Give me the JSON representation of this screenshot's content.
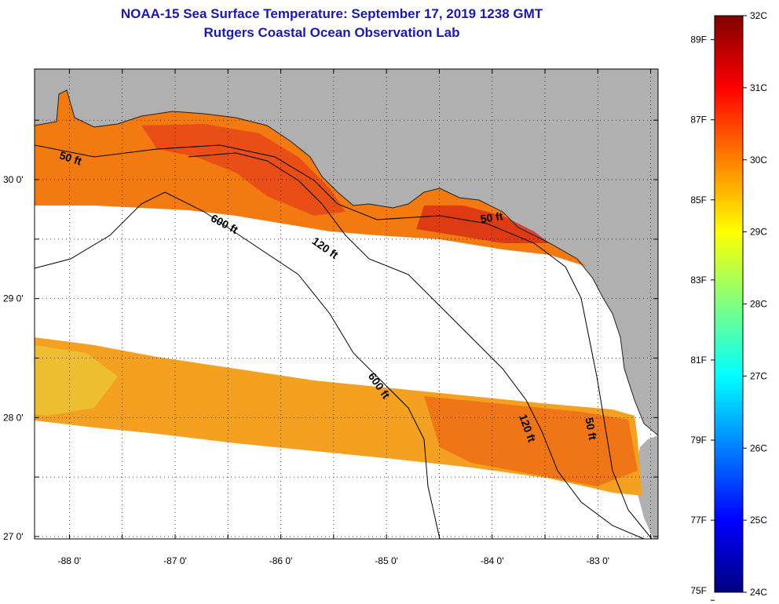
{
  "title": {
    "line1": "NOAA-15 Sea Surface Temperature:  September 17, 2019 1238 GMT",
    "line2": "Rutgers Coastal Ocean Observation Lab"
  },
  "map": {
    "land_color": "#b0b0b0",
    "no_data_color": "#ffffff",
    "lon_ticks": [
      {
        "value": -88,
        "label": "-88 0'"
      },
      {
        "value": -87,
        "label": "-87 0'"
      },
      {
        "value": -86,
        "label": "-86 0'"
      },
      {
        "value": -85,
        "label": "-85 0'"
      },
      {
        "value": -84,
        "label": "-84 0'"
      },
      {
        "value": -83,
        "label": "-83 0'"
      }
    ],
    "lat_ticks": [
      {
        "value": 30,
        "label": "30 0'"
      },
      {
        "value": 29,
        "label": "29 0'"
      },
      {
        "value": 28,
        "label": "28 0'"
      },
      {
        "value": 27,
        "label": "27 0'"
      }
    ],
    "lon_range": [
      -88.33,
      -82.43
    ],
    "lat_range": [
      26.98,
      30.93
    ],
    "contour_labels": [
      {
        "text": "50 ft",
        "lon": -88.0,
        "lat": 30.15,
        "rotate": 18
      },
      {
        "text": "600 ft",
        "lon": -86.55,
        "lat": 29.6,
        "rotate": 28
      },
      {
        "text": "120 ft",
        "lon": -85.6,
        "lat": 29.4,
        "rotate": 35
      },
      {
        "text": "50 ft",
        "lon": -84.0,
        "lat": 29.65,
        "rotate": -8
      },
      {
        "text": "600 ft",
        "lon": -85.1,
        "lat": 28.25,
        "rotate": 55
      },
      {
        "text": "120 ft",
        "lon": -83.7,
        "lat": 27.9,
        "rotate": 70
      },
      {
        "text": "50 ft",
        "lon": -83.1,
        "lat": 27.9,
        "rotate": 80
      }
    ]
  },
  "colorbar": {
    "f_labels": [
      "89F",
      "87F",
      "85F",
      "83F",
      "81F",
      "79F",
      "77F",
      "75F"
    ],
    "c_labels": [
      "32C",
      "31C",
      "30C",
      "29C",
      "28C",
      "27C",
      "26C",
      "25C",
      "24C"
    ],
    "colors": [
      "#800000",
      "#ff0000",
      "#ff8000",
      "#ffff00",
      "#80ff80",
      "#00ffff",
      "#0080ff",
      "#0000ff",
      "#000080"
    ]
  }
}
